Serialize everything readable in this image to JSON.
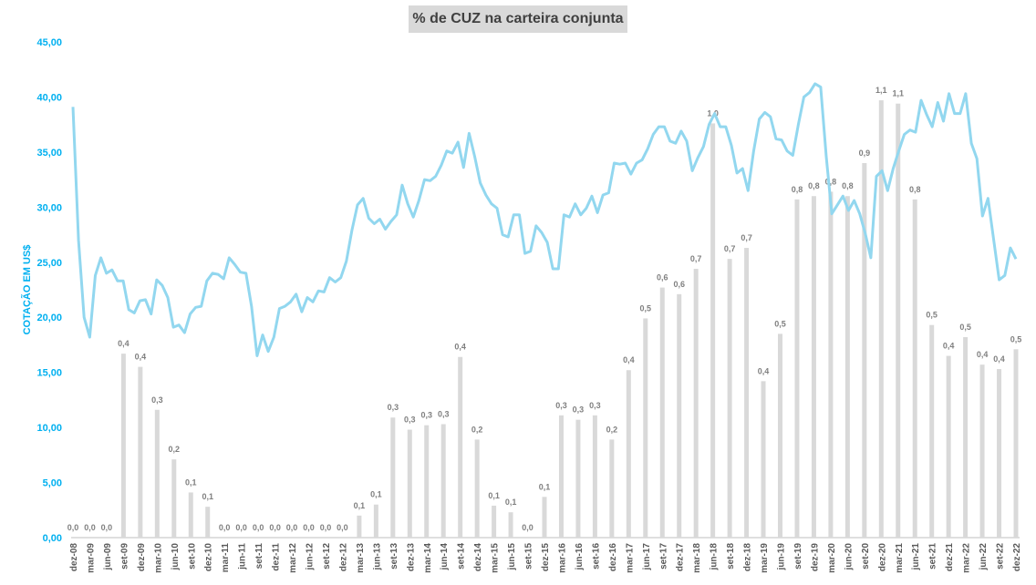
{
  "chart_data": {
    "type": "bar",
    "title": "% de CUZ na carteira conjunta",
    "ylabel": "COTAÇÃO EM US$",
    "ylim": [
      0,
      45
    ],
    "yticks": [
      "0,00",
      "5,00",
      "10,00",
      "15,00",
      "20,00",
      "25,00",
      "30,00",
      "35,00",
      "40,00",
      "45,00"
    ],
    "xticks": [
      "dez-08",
      "mar-09",
      "jun-09",
      "set-09",
      "dez-09",
      "mar-10",
      "jun-10",
      "set-10",
      "dez-10",
      "mar-11",
      "jun-11",
      "set-11",
      "dez-11",
      "mar-12",
      "jun-12",
      "set-12",
      "dez-12",
      "mar-13",
      "jun-13",
      "set-13",
      "dez-13",
      "mar-14",
      "jun-14",
      "set-14",
      "dez-14",
      "mar-15",
      "jun-15",
      "set-15",
      "dez-15",
      "mar-16",
      "jun-16",
      "set-16",
      "dez-16",
      "mar-17",
      "jun-17",
      "set-17",
      "dez-17",
      "mar-18",
      "jun-18",
      "set-18",
      "dez-18",
      "mar-19",
      "jun-19",
      "set-19",
      "dez-19",
      "mar-20",
      "jun-20",
      "set-20",
      "dez-20",
      "mar-21",
      "jun-21",
      "set-21",
      "dez-21",
      "mar-22",
      "jun-22",
      "set-22",
      "dez-22"
    ],
    "bar_labels": [
      "0,0",
      "0,0",
      "0,0",
      "0,4",
      "0,4",
      "0,3",
      "0,2",
      "0,1",
      "0,1",
      "0,0",
      "0,0",
      "0,0",
      "0,0",
      "0,0",
      "0,0",
      "0,0",
      "0,0",
      "0,1",
      "0,1",
      "0,3",
      "0,3",
      "0,3",
      "0,3",
      "0,4",
      "0,2",
      "0,1",
      "0,1",
      "0,0",
      "0,1",
      "0,3",
      "0,3",
      "0,3",
      "0,2",
      "0,4",
      "0,5",
      "0,6",
      "0,6",
      "0,7",
      "1,0",
      "0,7",
      "0,7",
      "0,4",
      "0,5",
      "0,8",
      "0,8",
      "0,8",
      "0,8",
      "0,9",
      "1,1",
      "1,1",
      "0,8",
      "0,5",
      "0,4",
      "0,5",
      "0,4",
      "0,4",
      "0,5"
    ],
    "bar_values_axis": [
      0,
      0,
      0,
      16.7,
      15.5,
      11.6,
      7.1,
      4.1,
      2.8,
      0,
      0,
      0,
      0,
      0,
      0,
      0,
      0,
      2.0,
      3.0,
      10.9,
      9.8,
      10.2,
      10.3,
      16.4,
      8.9,
      2.9,
      2.3,
      0,
      3.7,
      11.1,
      10.7,
      11.1,
      8.9,
      15.2,
      19.9,
      22.7,
      22.1,
      24.4,
      37.6,
      25.3,
      26.3,
      14.2,
      18.5,
      30.7,
      31.0,
      31.4,
      31.0,
      34.0,
      39.7,
      39.4,
      30.7,
      19.3,
      16.5,
      18.2,
      15.7,
      15.3,
      17.1
    ],
    "series": [
      {
        "name": "Cotação",
        "color": "#92d7ef",
        "values": [
          39.1,
          27,
          20.0,
          18.2,
          23.8,
          25.4,
          24.0,
          24.3,
          23.3,
          23.3,
          20.7,
          20.4,
          21.5,
          21.6,
          20.3,
          23.4,
          22.9,
          21.8,
          19.1,
          19.3,
          18.6,
          20.3,
          20.9,
          21.0,
          23.3,
          24.0,
          23.9,
          23.5,
          25.4,
          24.8,
          24.1,
          24.0,
          21.0,
          16.5,
          18.4,
          16.9,
          18.2,
          20.8,
          21.0,
          21.4,
          22.1,
          20.5,
          21.8,
          21.4,
          22.4,
          22.3,
          23.6,
          23.2,
          23.6,
          25.1,
          27.9,
          30.2,
          30.8,
          29.0,
          28.5,
          28.9,
          28.0,
          28.7,
          29.3,
          32.0,
          30.3,
          29.1,
          30.6,
          32.5,
          32.4,
          32.8,
          33.8,
          35.1,
          34.9,
          35.9,
          33.6,
          36.7,
          34.6,
          32.2,
          31.1,
          30.3,
          29.9,
          27.5,
          27.3,
          29.3,
          29.3,
          25.8,
          26.0,
          28.3,
          27.7,
          26.8,
          24.4,
          24.4,
          29.3,
          29.1,
          30.3,
          29.3,
          29.9,
          31.0,
          29.5,
          31.1,
          31.3,
          34.0,
          33.9,
          34.0,
          33.0,
          34.0,
          34.3,
          35.3,
          36.6,
          37.3,
          37.3,
          36.0,
          35.8,
          36.9,
          36.0,
          33.3,
          34.5,
          35.5,
          37.5,
          38.5,
          37.3,
          37.3,
          35.6,
          33.1,
          33.5,
          31.5,
          35.1,
          38.0,
          38.6,
          38.2,
          36.2,
          36.1,
          35.1,
          34.7,
          37.5,
          40.0,
          40.4,
          41.2,
          40.9,
          34.6,
          29.4,
          30.2,
          31.0,
          29.7,
          30.6,
          29.4,
          27.6,
          25.4,
          32.8,
          33.3,
          31.5,
          33.5,
          35.1,
          36.6,
          37.0,
          36.8,
          39.7,
          38.4,
          37.3,
          39.5,
          37.8,
          40.3,
          38.5,
          38.5,
          40.3,
          35.8,
          34.4,
          29.2,
          30.8,
          27.1,
          23.4,
          23.8,
          26.3,
          25.3
        ]
      }
    ],
    "colors": {
      "bar": "#d9d9d9",
      "line": "#92d7ef",
      "axis_label": "#00b0f0",
      "bar_label": "#7f7f7f",
      "tick": "#595959"
    },
    "grid": false,
    "legend": "none"
  }
}
